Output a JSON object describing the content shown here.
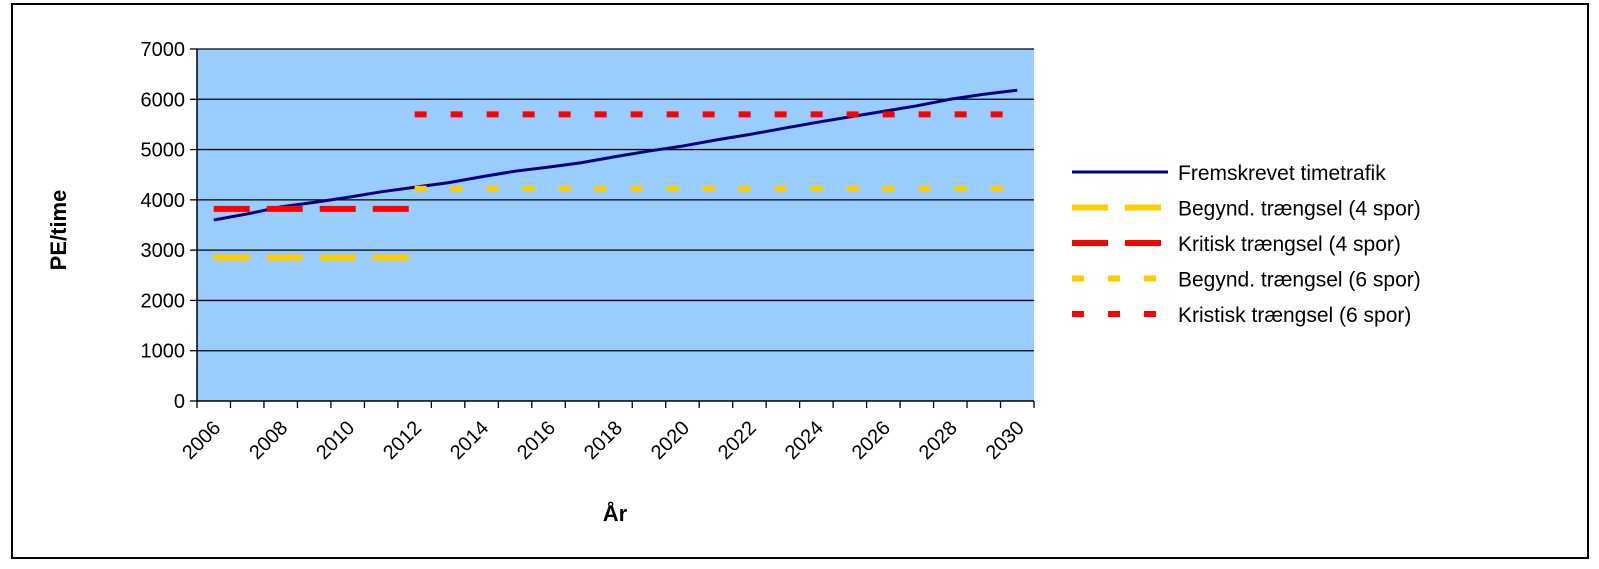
{
  "chart_data": {
    "type": "line",
    "title": "",
    "xlabel": "År",
    "ylabel": "PE/time",
    "ylim": [
      0,
      7000
    ],
    "yticks": [
      0,
      1000,
      2000,
      3000,
      4000,
      5000,
      6000,
      7000
    ],
    "x_categories": [
      "2006",
      "2007",
      "2008",
      "2009",
      "2010",
      "2011",
      "2012",
      "2013",
      "2014",
      "2015",
      "2016",
      "2017",
      "2018",
      "2019",
      "2020",
      "2021",
      "2022",
      "2023",
      "2024",
      "2025",
      "2026",
      "2027",
      "2028",
      "2029",
      "2030"
    ],
    "x_tick_labels": [
      "2006",
      "2008",
      "2010",
      "2012",
      "2014",
      "2016",
      "2018",
      "2020",
      "2022",
      "2024",
      "2026",
      "2028",
      "2030"
    ],
    "grid": true,
    "plot_background": "#99ccff",
    "legend_position": "right",
    "series": [
      {
        "name": "Fremskrevet timetrafik",
        "color": "#000080",
        "style": "solid",
        "x": [
          "2006",
          "2007",
          "2008",
          "2009",
          "2010",
          "2011",
          "2012",
          "2013",
          "2014",
          "2015",
          "2016",
          "2017",
          "2018",
          "2019",
          "2020",
          "2021",
          "2022",
          "2023",
          "2024",
          "2025",
          "2026",
          "2027",
          "2028",
          "2029",
          "2030"
        ],
        "values": [
          3600,
          3720,
          3860,
          3950,
          4050,
          4160,
          4250,
          4340,
          4460,
          4570,
          4650,
          4740,
          4860,
          4970,
          5070,
          5190,
          5300,
          5420,
          5540,
          5650,
          5760,
          5870,
          6000,
          6100,
          6180
        ]
      },
      {
        "name": "Begynd. trængsel (4 spor)",
        "color": "#ffcc00",
        "style": "long-dash",
        "x": [
          "2006",
          "2007",
          "2008",
          "2009",
          "2010",
          "2011",
          "2012"
        ],
        "values": [
          2850,
          2850,
          2850,
          2850,
          2850,
          2850,
          2850
        ]
      },
      {
        "name": "Kritisk trængsel (4 spor)",
        "color": "#ff0000",
        "style": "long-dash",
        "x": [
          "2006",
          "2007",
          "2008",
          "2009",
          "2010",
          "2011",
          "2012"
        ],
        "values": [
          3820,
          3820,
          3820,
          3820,
          3820,
          3820,
          3820
        ]
      },
      {
        "name": "Begynd. trængsel (6 spor)",
        "color": "#ffcc00",
        "style": "short-dash",
        "x": [
          "2012",
          "2013",
          "2014",
          "2015",
          "2016",
          "2017",
          "2018",
          "2019",
          "2020",
          "2021",
          "2022",
          "2023",
          "2024",
          "2025",
          "2026",
          "2027",
          "2028",
          "2029",
          "2030"
        ],
        "values": [
          4220,
          4220,
          4220,
          4220,
          4220,
          4220,
          4220,
          4220,
          4220,
          4220,
          4220,
          4220,
          4220,
          4220,
          4220,
          4220,
          4220,
          4220,
          4220
        ]
      },
      {
        "name": "Kristisk trængsel (6 spor)",
        "color": "#ff0000",
        "style": "short-dash",
        "x": [
          "2012",
          "2013",
          "2014",
          "2015",
          "2016",
          "2017",
          "2018",
          "2019",
          "2020",
          "2021",
          "2022",
          "2023",
          "2024",
          "2025",
          "2026",
          "2027",
          "2028",
          "2029",
          "2030"
        ],
        "values": [
          5700,
          5700,
          5700,
          5700,
          5700,
          5700,
          5700,
          5700,
          5700,
          5700,
          5700,
          5700,
          5700,
          5700,
          5700,
          5700,
          5700,
          5700,
          5700
        ]
      }
    ]
  }
}
